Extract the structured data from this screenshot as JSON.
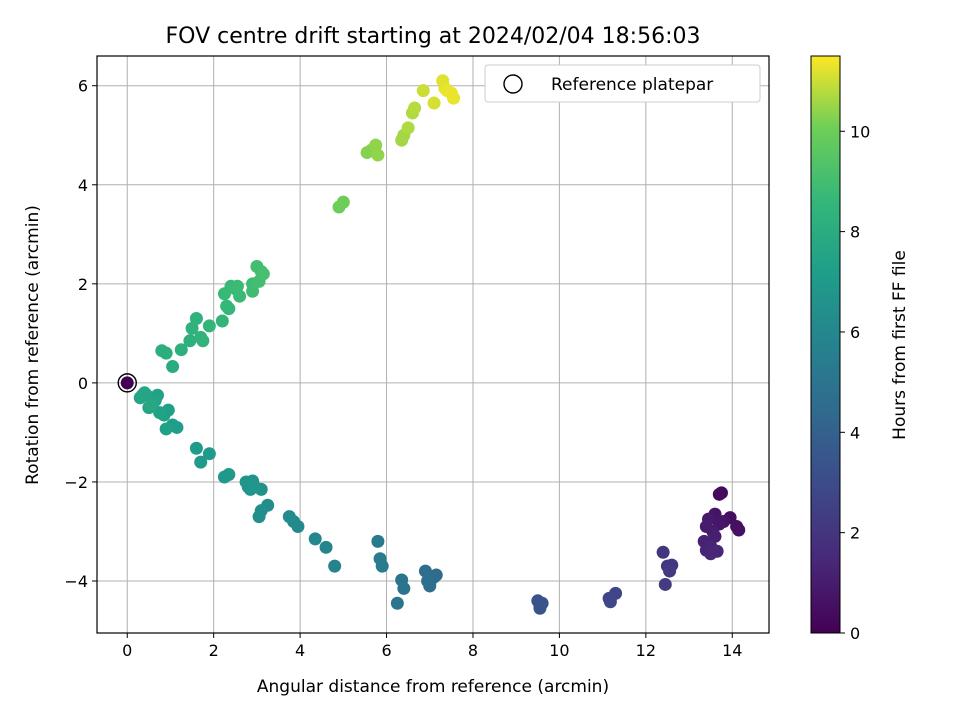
{
  "chart_data": {
    "type": "scatter",
    "title": "FOV centre drift starting at 2024/02/04 18:56:03",
    "xlabel": "Angular distance from reference (arcmin)",
    "ylabel": "Rotation from reference (arcmin)",
    "xlim": [
      -0.7,
      14.85
    ],
    "ylim": [
      -5.05,
      6.6
    ],
    "xticks": [
      0,
      2,
      4,
      6,
      8,
      10,
      12,
      14
    ],
    "yticks": [
      -4,
      -2,
      0,
      2,
      4,
      6
    ],
    "grid": true,
    "legend": {
      "placement": "top-right",
      "entries": [
        "Reference platepar"
      ]
    },
    "colorbar": {
      "label": "Hours from first FF file",
      "range": [
        0,
        11.5
      ],
      "ticks": [
        0,
        2,
        4,
        6,
        8,
        10
      ],
      "colormap": "viridis"
    },
    "reference_point": {
      "x": 0,
      "y": 0,
      "hours": 0
    },
    "points": [
      {
        "x": 13.75,
        "y": -2.22,
        "hours": 0.3
      },
      {
        "x": 13.7,
        "y": -2.25,
        "hours": 0.4
      },
      {
        "x": 13.95,
        "y": -2.72,
        "hours": 0.5
      },
      {
        "x": 14.1,
        "y": -2.9,
        "hours": 0.6
      },
      {
        "x": 14.15,
        "y": -2.97,
        "hours": 0.6
      },
      {
        "x": 13.6,
        "y": -2.65,
        "hours": 0.7
      },
      {
        "x": 13.8,
        "y": -2.8,
        "hours": 0.7
      },
      {
        "x": 13.7,
        "y": -2.85,
        "hours": 0.8
      },
      {
        "x": 13.45,
        "y": -2.75,
        "hours": 0.9
      },
      {
        "x": 13.4,
        "y": -2.9,
        "hours": 1.0
      },
      {
        "x": 13.55,
        "y": -3.0,
        "hours": 1.0
      },
      {
        "x": 13.6,
        "y": -3.1,
        "hours": 1.1
      },
      {
        "x": 13.35,
        "y": -3.2,
        "hours": 1.2
      },
      {
        "x": 13.5,
        "y": -3.3,
        "hours": 1.3
      },
      {
        "x": 13.4,
        "y": -3.38,
        "hours": 1.3
      },
      {
        "x": 13.65,
        "y": -3.4,
        "hours": 1.4
      },
      {
        "x": 13.5,
        "y": -3.45,
        "hours": 1.4
      },
      {
        "x": 12.4,
        "y": -3.42,
        "hours": 2.0
      },
      {
        "x": 12.5,
        "y": -3.7,
        "hours": 2.1
      },
      {
        "x": 12.6,
        "y": -3.68,
        "hours": 2.1
      },
      {
        "x": 12.55,
        "y": -3.8,
        "hours": 2.2
      },
      {
        "x": 12.45,
        "y": -4.07,
        "hours": 2.3
      },
      {
        "x": 11.3,
        "y": -4.25,
        "hours": 2.7
      },
      {
        "x": 11.15,
        "y": -4.35,
        "hours": 2.8
      },
      {
        "x": 11.18,
        "y": -4.42,
        "hours": 2.8
      },
      {
        "x": 9.6,
        "y": -4.45,
        "hours": 3.3
      },
      {
        "x": 9.55,
        "y": -4.5,
        "hours": 3.3
      },
      {
        "x": 9.5,
        "y": -4.4,
        "hours": 3.4
      },
      {
        "x": 9.55,
        "y": -4.55,
        "hours": 3.4
      },
      {
        "x": 7.1,
        "y": -3.92,
        "hours": 4.5
      },
      {
        "x": 7.15,
        "y": -3.88,
        "hours": 4.5
      },
      {
        "x": 6.9,
        "y": -3.8,
        "hours": 4.6
      },
      {
        "x": 7.0,
        "y": -4.05,
        "hours": 4.6
      },
      {
        "x": 6.95,
        "y": -4.0,
        "hours": 4.7
      },
      {
        "x": 7.0,
        "y": -4.1,
        "hours": 4.7
      },
      {
        "x": 6.35,
        "y": -3.98,
        "hours": 5.0
      },
      {
        "x": 6.4,
        "y": -4.15,
        "hours": 5.0
      },
      {
        "x": 6.25,
        "y": -4.45,
        "hours": 5.1
      },
      {
        "x": 5.8,
        "y": -3.2,
        "hours": 5.3
      },
      {
        "x": 5.85,
        "y": -3.55,
        "hours": 5.4
      },
      {
        "x": 5.9,
        "y": -3.7,
        "hours": 5.4
      },
      {
        "x": 4.8,
        "y": -3.7,
        "hours": 5.8
      },
      {
        "x": 4.6,
        "y": -3.32,
        "hours": 5.9
      },
      {
        "x": 4.35,
        "y": -3.15,
        "hours": 6.0
      },
      {
        "x": 3.95,
        "y": -2.9,
        "hours": 6.1
      },
      {
        "x": 3.85,
        "y": -2.8,
        "hours": 6.1
      },
      {
        "x": 3.75,
        "y": -2.7,
        "hours": 6.2
      },
      {
        "x": 3.25,
        "y": -2.47,
        "hours": 6.3
      },
      {
        "x": 3.1,
        "y": -2.58,
        "hours": 6.4
      },
      {
        "x": 3.05,
        "y": -2.7,
        "hours": 6.4
      },
      {
        "x": 3.1,
        "y": -2.15,
        "hours": 6.5
      },
      {
        "x": 2.9,
        "y": -1.98,
        "hours": 6.6
      },
      {
        "x": 2.85,
        "y": -2.15,
        "hours": 6.6
      },
      {
        "x": 2.75,
        "y": -2.0,
        "hours": 6.7
      },
      {
        "x": 2.8,
        "y": -2.1,
        "hours": 6.7
      },
      {
        "x": 2.95,
        "y": -2.1,
        "hours": 6.8
      },
      {
        "x": 2.35,
        "y": -1.85,
        "hours": 6.9
      },
      {
        "x": 2.25,
        "y": -1.9,
        "hours": 6.9
      },
      {
        "x": 1.9,
        "y": -1.43,
        "hours": 7.0
      },
      {
        "x": 1.7,
        "y": -1.6,
        "hours": 7.0
      },
      {
        "x": 1.6,
        "y": -1.32,
        "hours": 7.1
      },
      {
        "x": 1.15,
        "y": -0.9,
        "hours": 7.2
      },
      {
        "x": 1.05,
        "y": -0.85,
        "hours": 7.2
      },
      {
        "x": 0.9,
        "y": -0.93,
        "hours": 7.3
      },
      {
        "x": 0.95,
        "y": -0.55,
        "hours": 7.3
      },
      {
        "x": 0.85,
        "y": -0.65,
        "hours": 7.3
      },
      {
        "x": 0.75,
        "y": -0.6,
        "hours": 7.4
      },
      {
        "x": 0.65,
        "y": -0.35,
        "hours": 7.4
      },
      {
        "x": 0.7,
        "y": -0.25,
        "hours": 7.4
      },
      {
        "x": 0.6,
        "y": -0.4,
        "hours": 7.5
      },
      {
        "x": 0.5,
        "y": -0.5,
        "hours": 7.5
      },
      {
        "x": 0.45,
        "y": -0.25,
        "hours": 7.5
      },
      {
        "x": 0.35,
        "y": -0.25,
        "hours": 7.6
      },
      {
        "x": 0.3,
        "y": -0.3,
        "hours": 7.6
      },
      {
        "x": 0.4,
        "y": -0.2,
        "hours": 7.6
      },
      {
        "x": 0.55,
        "y": -0.45,
        "hours": 7.7
      },
      {
        "x": 1.05,
        "y": 0.33,
        "hours": 8.0
      },
      {
        "x": 0.8,
        "y": 0.65,
        "hours": 8.1
      },
      {
        "x": 0.9,
        "y": 0.6,
        "hours": 8.1
      },
      {
        "x": 1.25,
        "y": 0.67,
        "hours": 8.2
      },
      {
        "x": 1.45,
        "y": 0.85,
        "hours": 8.2
      },
      {
        "x": 1.5,
        "y": 1.1,
        "hours": 8.3
      },
      {
        "x": 1.6,
        "y": 1.3,
        "hours": 8.3
      },
      {
        "x": 1.75,
        "y": 0.85,
        "hours": 8.4
      },
      {
        "x": 1.7,
        "y": 0.92,
        "hours": 8.4
      },
      {
        "x": 1.9,
        "y": 1.15,
        "hours": 8.5
      },
      {
        "x": 2.2,
        "y": 1.25,
        "hours": 8.5
      },
      {
        "x": 2.3,
        "y": 1.55,
        "hours": 8.6
      },
      {
        "x": 2.35,
        "y": 1.5,
        "hours": 8.6
      },
      {
        "x": 2.25,
        "y": 1.8,
        "hours": 8.7
      },
      {
        "x": 2.4,
        "y": 1.95,
        "hours": 8.7
      },
      {
        "x": 2.5,
        "y": 1.9,
        "hours": 8.8
      },
      {
        "x": 2.6,
        "y": 1.75,
        "hours": 8.8
      },
      {
        "x": 2.55,
        "y": 1.95,
        "hours": 8.8
      },
      {
        "x": 2.9,
        "y": 1.85,
        "hours": 8.9
      },
      {
        "x": 2.9,
        "y": 2.0,
        "hours": 8.9
      },
      {
        "x": 3.05,
        "y": 2.05,
        "hours": 9.0
      },
      {
        "x": 3.1,
        "y": 2.25,
        "hours": 9.0
      },
      {
        "x": 3.0,
        "y": 2.35,
        "hours": 9.0
      },
      {
        "x": 3.15,
        "y": 2.2,
        "hours": 9.1
      },
      {
        "x": 4.9,
        "y": 3.55,
        "hours": 10.0
      },
      {
        "x": 5.0,
        "y": 3.65,
        "hours": 10.0
      },
      {
        "x": 5.55,
        "y": 4.65,
        "hours": 10.3
      },
      {
        "x": 5.65,
        "y": 4.7,
        "hours": 10.3
      },
      {
        "x": 5.75,
        "y": 4.8,
        "hours": 10.4
      },
      {
        "x": 5.8,
        "y": 4.6,
        "hours": 10.4
      },
      {
        "x": 6.35,
        "y": 4.9,
        "hours": 10.6
      },
      {
        "x": 6.4,
        "y": 5.0,
        "hours": 10.6
      },
      {
        "x": 6.5,
        "y": 5.15,
        "hours": 10.7
      },
      {
        "x": 6.6,
        "y": 5.45,
        "hours": 10.7
      },
      {
        "x": 6.65,
        "y": 5.55,
        "hours": 10.8
      },
      {
        "x": 6.85,
        "y": 5.9,
        "hours": 11.0
      },
      {
        "x": 7.1,
        "y": 5.65,
        "hours": 11.1
      },
      {
        "x": 7.3,
        "y": 6.1,
        "hours": 11.2
      },
      {
        "x": 7.35,
        "y": 5.95,
        "hours": 11.2
      },
      {
        "x": 7.5,
        "y": 5.85,
        "hours": 11.3
      },
      {
        "x": 7.55,
        "y": 5.75,
        "hours": 11.3
      },
      {
        "x": 7.4,
        "y": 5.9,
        "hours": 11.3
      }
    ]
  }
}
